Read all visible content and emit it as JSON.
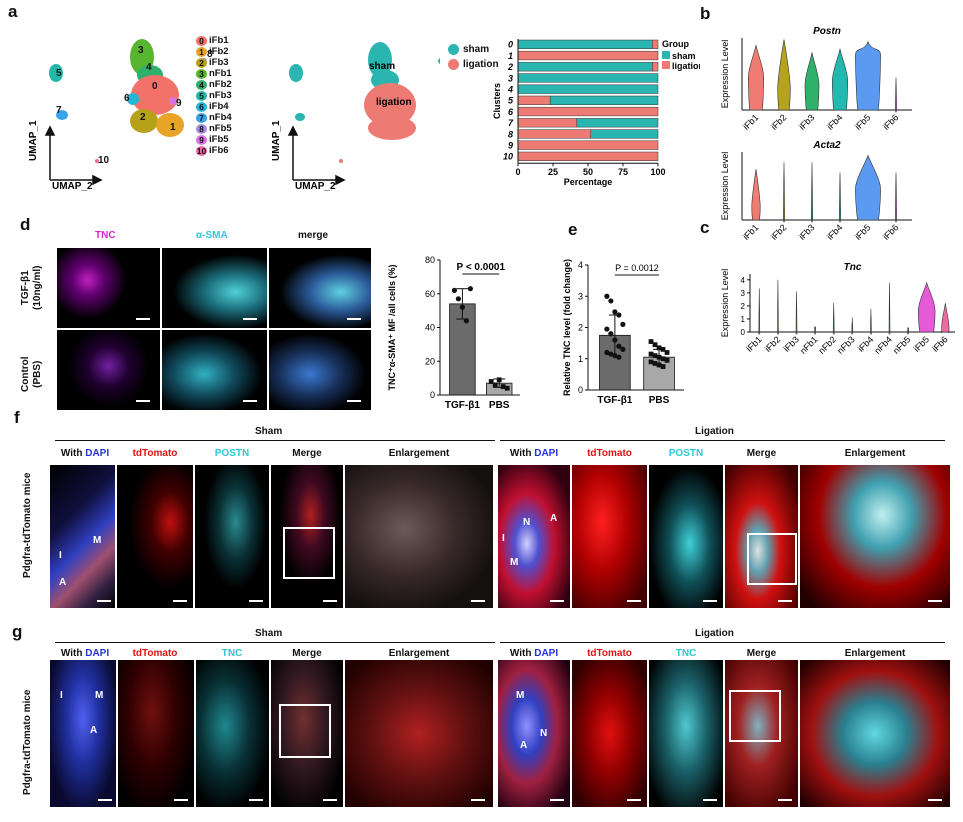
{
  "panels": {
    "a": "a",
    "b": "b",
    "c": "c",
    "d": "d",
    "e": "e",
    "f": "f",
    "g": "g"
  },
  "panel_a": {
    "umap_axis_y": "UMAP_1",
    "umap_axis_x": "UMAP_2",
    "cluster_labels": [
      "3",
      "4",
      "0",
      "6",
      "2",
      "1",
      "9",
      "5",
      "7",
      "8",
      "10"
    ],
    "legend": [
      {
        "num": "0",
        "name": "iFb1",
        "color": "#f2726a"
      },
      {
        "num": "1",
        "name": "iFb2",
        "color": "#e8a426"
      },
      {
        "num": "2",
        "name": "iFb3",
        "color": "#b6a11b"
      },
      {
        "num": "3",
        "name": "nFb1",
        "color": "#58b52f"
      },
      {
        "num": "4",
        "name": "nFb2",
        "color": "#2fb06b"
      },
      {
        "num": "5",
        "name": "nFb3",
        "color": "#22b9a6"
      },
      {
        "num": "6",
        "name": "iFb4",
        "color": "#22b7d8"
      },
      {
        "num": "7",
        "name": "nFb4",
        "color": "#38a3e8"
      },
      {
        "num": "8",
        "name": "nFb5",
        "color": "#a88be3"
      },
      {
        "num": "9",
        "name": "iFb5",
        "color": "#d774e0"
      },
      {
        "num": "10",
        "name": "iFb6",
        "color": "#ee6aa3"
      }
    ],
    "group_umap_labels": {
      "sham": "sham",
      "ligation": "ligation"
    },
    "group_legend": [
      {
        "name": "sham",
        "color": "#2bb5b0"
      },
      {
        "name": "ligation",
        "color": "#ee7b73"
      }
    ]
  },
  "chart_data": [
    {
      "type": "bar",
      "orientation": "horizontal-stacked",
      "title": "",
      "ylabel": "Clusters",
      "xlabel": "Percentage",
      "legend_title": "Group",
      "categories": [
        "0",
        "1",
        "2",
        "3",
        "4",
        "5",
        "6",
        "7",
        "8",
        "9",
        "10"
      ],
      "xticks": [
        "0",
        "25",
        "50",
        "75",
        "100"
      ],
      "xlim": [
        0,
        100
      ],
      "series": [
        {
          "name": "sham",
          "color": "#2bb5b0",
          "values": [
            96,
            0,
            96,
            100,
            100,
            77,
            0,
            58,
            48,
            0,
            0
          ]
        },
        {
          "name": "ligation",
          "color": "#ee7b73",
          "values": [
            4,
            100,
            4,
            0,
            0,
            23,
            100,
            42,
            52,
            100,
            100
          ]
        }
      ]
    },
    {
      "type": "violin",
      "title": "Postn",
      "ylabel": "Expression Level",
      "categories": [
        "iFb1",
        "iFb2",
        "iFb3",
        "iFb4",
        "iFb5",
        "iFb6"
      ],
      "colors": [
        "#f07b72",
        "#b5a21e",
        "#2fb06b",
        "#22b9b0",
        "#5a9af0",
        "#d774e0"
      ],
      "relative_width": [
        0.55,
        0.45,
        0.5,
        0.55,
        0.9,
        0.05
      ],
      "median_level": [
        0.45,
        0.3,
        0.35,
        0.4,
        0.75,
        0.02
      ],
      "max_level": [
        0.9,
        0.98,
        0.8,
        0.85,
        0.95,
        0.45
      ]
    },
    {
      "type": "violin",
      "title": "Acta2",
      "ylabel": "Expression Level",
      "categories": [
        "iFb1",
        "iFb2",
        "iFb3",
        "iFb4",
        "iFb5",
        "iFb6"
      ],
      "colors": [
        "#f07b72",
        "#b5a21e",
        "#2fb06b",
        "#22b9b0",
        "#5a9af0",
        "#d774e0"
      ],
      "relative_width": [
        0.3,
        0.05,
        0.05,
        0.05,
        0.9,
        0.05
      ],
      "median_level": [
        0.2,
        0.02,
        0.02,
        0.02,
        0.45,
        0.02
      ],
      "max_level": [
        0.75,
        0.85,
        0.85,
        0.7,
        0.95,
        0.7
      ]
    },
    {
      "type": "violin",
      "title": "Tnc",
      "ylabel": "Expression Level",
      "yticks": [
        "0",
        "1",
        "2",
        "3",
        "4"
      ],
      "categories": [
        "iFb1",
        "iFb2",
        "iFb3",
        "nFb1",
        "nFb2",
        "nFb3",
        "iFb4",
        "nFb4",
        "nFb5",
        "iFb5",
        "iFb6"
      ],
      "colors": [
        "#f07b72",
        "#e8a426",
        "#b5a21e",
        "#58b52f",
        "#2fb06b",
        "#22b9a6",
        "#22b7d8",
        "#38a3e8",
        "#a88be3",
        "#e55ad6",
        "#ee6aa3"
      ],
      "relative_width": [
        0.05,
        0.05,
        0.05,
        0.05,
        0.05,
        0.05,
        0.05,
        0.05,
        0.05,
        0.9,
        0.4
      ],
      "median_level": [
        0.02,
        0.02,
        0.02,
        0.02,
        0.02,
        0.02,
        0.02,
        0.02,
        0.02,
        0.35,
        0.05
      ],
      "max_level": [
        0.75,
        0.9,
        0.7,
        0.1,
        0.5,
        0.25,
        0.4,
        0.85,
        0.05,
        0.85,
        0.5
      ]
    },
    {
      "type": "bar",
      "title": "",
      "ylabel": "TNC⁺α-SMA⁺ MF /all cells (%)",
      "categories": [
        "TGF-β1",
        "PBS"
      ],
      "values": [
        54,
        7
      ],
      "errors": [
        9,
        2.5
      ],
      "points": [
        [
          62,
          57,
          52,
          44,
          63
        ],
        [
          8,
          6,
          9,
          5,
          4
        ]
      ],
      "yticks": [
        "0",
        "20",
        "40",
        "60",
        "80"
      ],
      "ylim": [
        0,
        80
      ],
      "annotation": "P < 0.0001"
    },
    {
      "type": "bar",
      "title": "",
      "ylabel": "Relative TNC level (fold change)",
      "categories": [
        "TGF-β1",
        "PBS"
      ],
      "values": [
        1.75,
        1.05
      ],
      "errors": [
        0.65,
        0.25
      ],
      "points": [
        [
          3.0,
          2.85,
          2.5,
          2.4,
          2.1,
          1.95,
          1.8,
          1.6,
          1.4,
          1.3,
          1.2,
          1.15,
          1.1,
          1.05
        ],
        [
          1.55,
          1.45,
          1.35,
          1.3,
          1.2,
          1.15,
          1.1,
          1.05,
          1.0,
          0.95,
          0.9,
          0.85,
          0.8,
          0.75
        ]
      ],
      "yticks": [
        "0",
        "1",
        "2",
        "3",
        "4"
      ],
      "ylim": [
        0,
        4
      ],
      "annotation": "P = 0.0012"
    }
  ],
  "panel_d": {
    "columns": [
      {
        "label": "TNC",
        "color": "#e020d0"
      },
      {
        "label": "α-SMA",
        "color": "#2ec6d6"
      },
      {
        "label": "merge",
        "color": "#111111"
      }
    ],
    "rows": [
      "TGF-β1\n(10ng/ml)",
      "Control\n(PBS)"
    ]
  },
  "panel_f": {
    "row_label": "Pdgfra-tdTomato mice",
    "groups": [
      "Sham",
      "Ligation"
    ],
    "columns": [
      {
        "prefix": "With ",
        "stain": "DAPI",
        "color": "#2233dd"
      },
      {
        "prefix": "",
        "stain": "tdTomato",
        "color": "#e01010"
      },
      {
        "prefix": "",
        "stain": "POSTN",
        "color": "#2ec6d6"
      },
      {
        "prefix": "",
        "stain": "Merge",
        "color": "#111111"
      },
      {
        "prefix": "",
        "stain": "Enlargement",
        "color": "#111111"
      }
    ],
    "overlay_letters_sham": [
      "M",
      "I",
      "A"
    ],
    "overlay_letters_lig": [
      "N",
      "A",
      "I",
      "M"
    ]
  },
  "panel_g": {
    "row_label": "Pdgfra-tdTomato mice",
    "groups": [
      "Sham",
      "Ligation"
    ],
    "columns": [
      {
        "prefix": "With ",
        "stain": "DAPI",
        "color": "#2233dd"
      },
      {
        "prefix": "",
        "stain": "tdTomato",
        "color": "#e01010"
      },
      {
        "prefix": "",
        "stain": "TNC",
        "color": "#2ec6d6"
      },
      {
        "prefix": "",
        "stain": "Merge",
        "color": "#111111"
      },
      {
        "prefix": "",
        "stain": "Enlargement",
        "color": "#111111"
      }
    ],
    "overlay_letters_sham": [
      "I",
      "M",
      "A"
    ],
    "overlay_letters_lig": [
      "M",
      "N",
      "A"
    ]
  }
}
